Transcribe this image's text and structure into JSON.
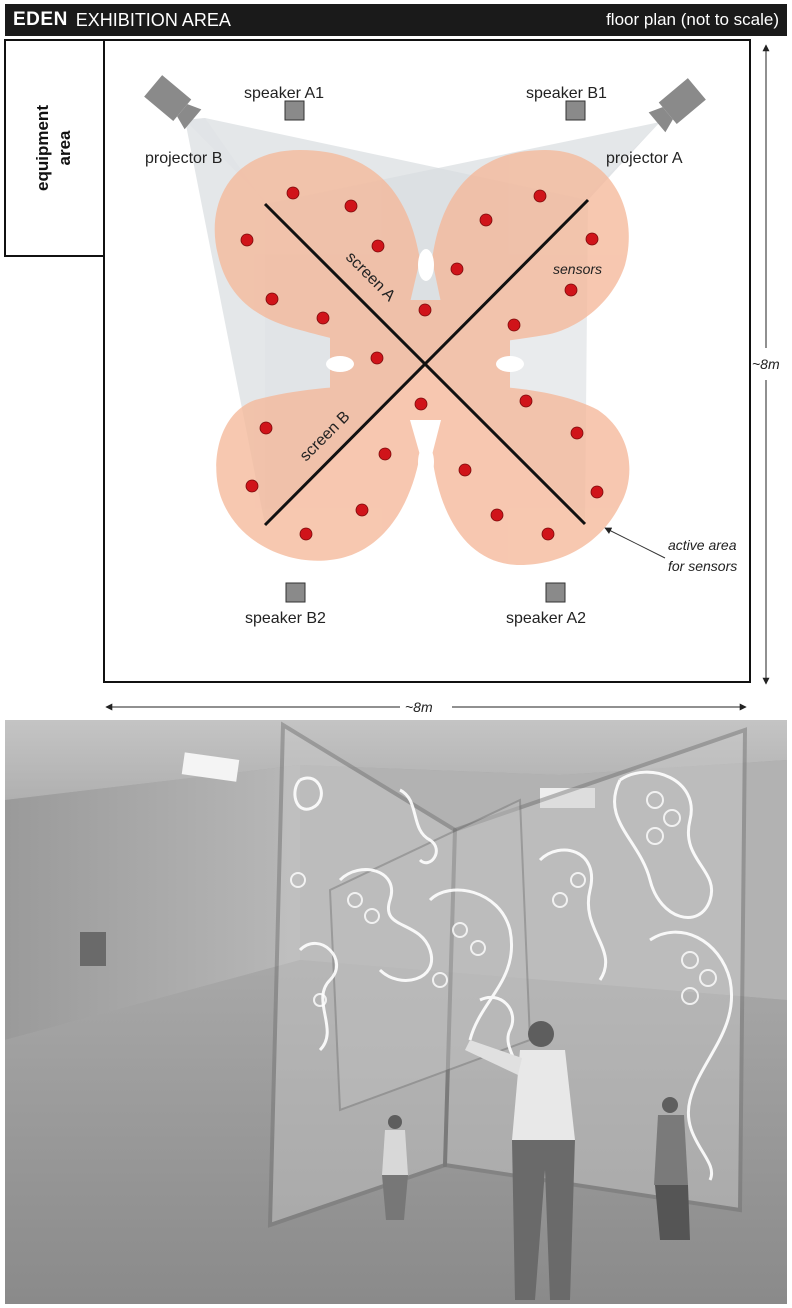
{
  "header": {
    "brand": "EDEN",
    "title": "EXHIBITION AREA",
    "subtitle": "floor plan (not to scale)"
  },
  "floor_plan": {
    "equipment_area": [
      "equipment",
      "area"
    ],
    "speakers": [
      {
        "id": "A1",
        "label": "speaker A1"
      },
      {
        "id": "B1",
        "label": "speaker B1"
      },
      {
        "id": "B2",
        "label": "speaker B2"
      },
      {
        "id": "A2",
        "label": "speaker A2"
      }
    ],
    "projectors": [
      {
        "id": "B",
        "label": "projector B"
      },
      {
        "id": "A",
        "label": "projector A"
      }
    ],
    "screens": [
      {
        "id": "A",
        "label": "screen A"
      },
      {
        "id": "B",
        "label": "screen B"
      }
    ],
    "sensors_label": "sensors",
    "active_area_label": [
      "active area",
      "for sensors"
    ],
    "dimension_height": "~8m",
    "dimension_width": "~8m"
  },
  "colors": {
    "title_bar": "#1a1a1a",
    "active_area": "#f5b89a",
    "sensor": "#d0141a",
    "beam": "#d8dde0",
    "device": "#8a8a8a"
  }
}
